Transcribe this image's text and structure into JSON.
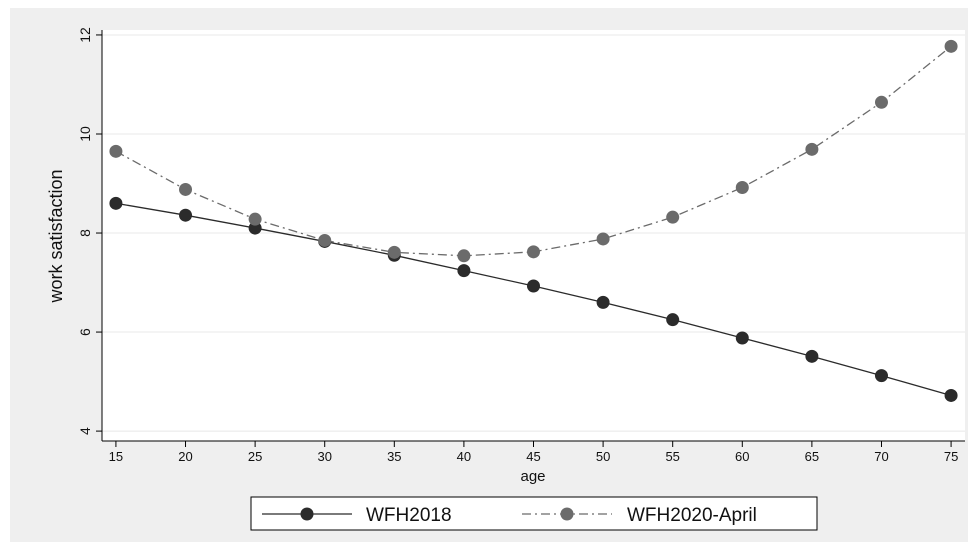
{
  "chart_data": {
    "type": "line",
    "title": "",
    "xlabel": "age",
    "ylabel": "work satisfaction",
    "x": [
      15,
      20,
      25,
      30,
      35,
      40,
      45,
      50,
      55,
      60,
      65,
      70,
      75
    ],
    "xlim": [
      14,
      76
    ],
    "ylim": [
      3.8,
      12.1
    ],
    "xticks": [
      15,
      20,
      25,
      30,
      35,
      40,
      45,
      50,
      55,
      60,
      65,
      70,
      75
    ],
    "yticks": [
      4,
      6,
      8,
      10,
      12
    ],
    "grid": true,
    "legend_position": "bottom",
    "series": [
      {
        "name": "WFH2018",
        "color": "#2b2b2b",
        "line_style": "solid",
        "values": [
          8.6,
          8.36,
          8.1,
          7.83,
          7.55,
          7.24,
          6.93,
          6.6,
          6.25,
          5.88,
          5.51,
          5.12,
          4.72
        ]
      },
      {
        "name": "WFH2020-April",
        "color": "#6b6b6b",
        "line_style": "dash-dot",
        "values": [
          9.65,
          8.88,
          8.28,
          7.85,
          7.61,
          7.54,
          7.62,
          7.88,
          8.32,
          8.92,
          9.69,
          10.64,
          11.77
        ]
      }
    ]
  },
  "colors": {
    "outer_background": "#efefef",
    "plot_background": "#ffffff",
    "grid": "#e8e8e8"
  }
}
